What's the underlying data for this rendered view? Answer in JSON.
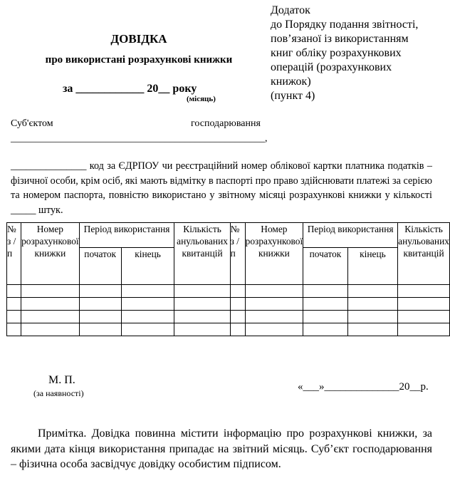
{
  "annex": {
    "lines": [
      "Додаток",
      "до Порядку подання звітності,",
      "пов’язаної із використанням",
      "книг обліку розрахункових",
      "операцій (розрахункових",
      "книжок)",
      "(пункт 4)"
    ]
  },
  "header": {
    "title": "ДОВІДКА",
    "subtitle": "про використані розрахункові книжки",
    "period_line": "за ____________ 20__ року",
    "month_hint": "(місяць)"
  },
  "subject": {
    "label_left": "Суб'єктом",
    "label_right": "господарювання",
    "blank_line": "___________________________________________________,",
    "paragraph": "_______________ код за ЄДРПОУ чи реєстраційний номер облікової картки платника податків – фізичної особи, крім осіб, які мають відмітку в паспорті про право здійснювати платежі за серією та номером паспорта, повністю використано у звітному місяці розрахункові книжки у кількості _____ штук."
  },
  "table": {
    "headers": {
      "num": "№ з / п",
      "num2": "№ з / п",
      "book": "Номер розрахункової книжки",
      "period": "Період використання",
      "start": "початок",
      "end": "кінець",
      "count": "Кількість анульованих квитанцій"
    },
    "empty_rows": 4
  },
  "footer": {
    "stamp": "М. П.",
    "stamp_note": "(за наявності)",
    "date_line": "«___»______________20__р.",
    "note": "Примітка. Довідка повинна містити інформацію про розрахункові книжки, за якими дата кінця використання припадає на звітний місяць. Суб’єкт господарювання – фізична особа засвідчує довідку особистим підписом."
  }
}
